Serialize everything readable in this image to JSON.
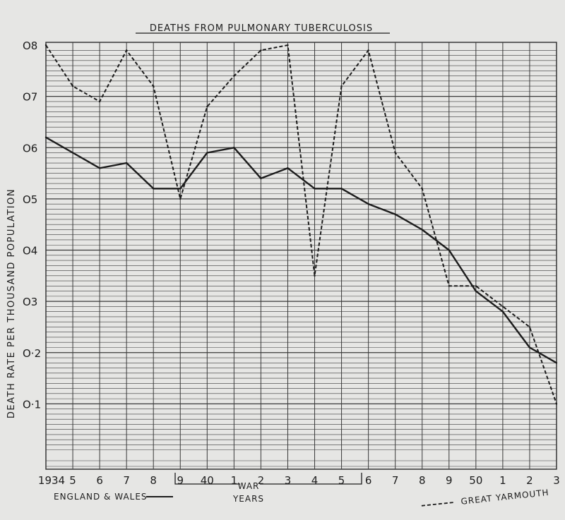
{
  "chart_data": {
    "type": "line",
    "title": "DEATHS  FROM  PULMONARY  TUBERCULOSIS",
    "ylabel": "DEATH  RATE  PER  THOUSAND  POPULATION",
    "xlabel": "YEARS",
    "war_label": "WAR",
    "x_tick_labels": [
      "1934",
      "5",
      "6",
      "7",
      "8",
      "9",
      "40",
      "1",
      "2",
      "3",
      "4",
      "5",
      "6",
      "7",
      "8",
      "9",
      "50",
      "1",
      "2",
      "3"
    ],
    "x": [
      1934,
      1935,
      1936,
      1937,
      1938,
      1939,
      1940,
      1941,
      1942,
      1943,
      1944,
      1945,
      1946,
      1947,
      1948,
      1949,
      1950,
      1951,
      1952,
      1953
    ],
    "y_tick_labels": [
      "O·1",
      "O·2",
      "O3",
      "O4",
      "O5",
      "O6",
      "O7",
      "O8"
    ],
    "y_tick_values": [
      0.1,
      0.2,
      0.3,
      0.4,
      0.5,
      0.6,
      0.7,
      0.8
    ],
    "ylim": [
      0,
      0.8
    ],
    "grid": true,
    "series": [
      {
        "name": "ENGLAND & WALES",
        "style": "solid",
        "color": "#1c1c1c",
        "values": [
          0.62,
          0.59,
          0.56,
          0.57,
          0.52,
          0.52,
          0.59,
          0.6,
          0.54,
          0.56,
          0.52,
          0.52,
          0.49,
          0.47,
          0.44,
          0.4,
          0.32,
          0.28,
          0.21,
          0.18
        ]
      },
      {
        "name": "GREAT YARMOUTH",
        "style": "dashed",
        "color": "#1c1c1c",
        "values": [
          0.8,
          0.72,
          0.69,
          0.79,
          0.72,
          0.5,
          0.68,
          0.74,
          0.79,
          0.8,
          0.35,
          0.72,
          0.79,
          0.59,
          0.52,
          0.33,
          0.33,
          0.29,
          0.25,
          0.1
        ]
      }
    ]
  }
}
